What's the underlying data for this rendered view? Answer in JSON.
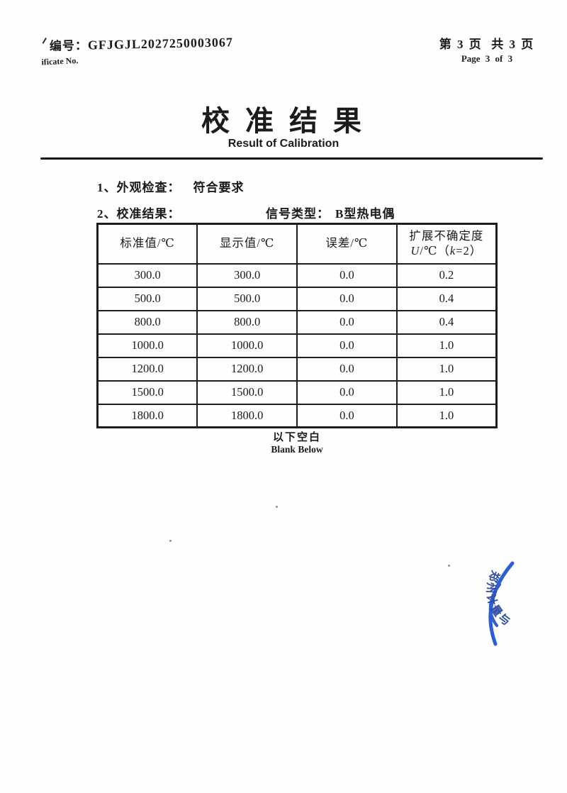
{
  "header": {
    "cert_label_cn": "编号：",
    "cert_no": "GFJGJL2027250003067",
    "cert_label_en": "ificate No.",
    "page_info_cn": "第 3 页  共 3 页",
    "page_info_en": "Page 3  of  3"
  },
  "title_cn": "校 准 结 果",
  "title_en": "Result of Calibration",
  "items": {
    "item1_label": "1、外观检查：",
    "item1_value": "符合要求",
    "item2_label": "2、校准结果：",
    "signal_type_label": "信号类型：",
    "signal_type_value": "B型热电偶"
  },
  "table": {
    "headers": [
      "标准值/℃",
      "显示值/℃",
      "误差/℃"
    ],
    "header4": {
      "line1": "扩展不确定度",
      "u": "U",
      "mid": "/℃（",
      "k": "k",
      "tail": "=2）"
    },
    "rows": [
      [
        "300.0",
        "300.0",
        "0.0",
        "0.2"
      ],
      [
        "500.0",
        "500.0",
        "0.0",
        "0.4"
      ],
      [
        "800.0",
        "800.0",
        "0.0",
        "0.4"
      ],
      [
        "1000.0",
        "1000.0",
        "0.0",
        "1.0"
      ],
      [
        "1200.0",
        "1200.0",
        "0.0",
        "1.0"
      ],
      [
        "1500.0",
        "1500.0",
        "0.0",
        "1.0"
      ],
      [
        "1800.0",
        "1800.0",
        "0.0",
        "1.0"
      ]
    ]
  },
  "footer": {
    "blank_cn": "以下空白",
    "blank_en": "Blank Below"
  },
  "stamp": {
    "text": "郑州计量与",
    "arc_color": "#1d53d3",
    "text_color": "#1a3d9e"
  }
}
